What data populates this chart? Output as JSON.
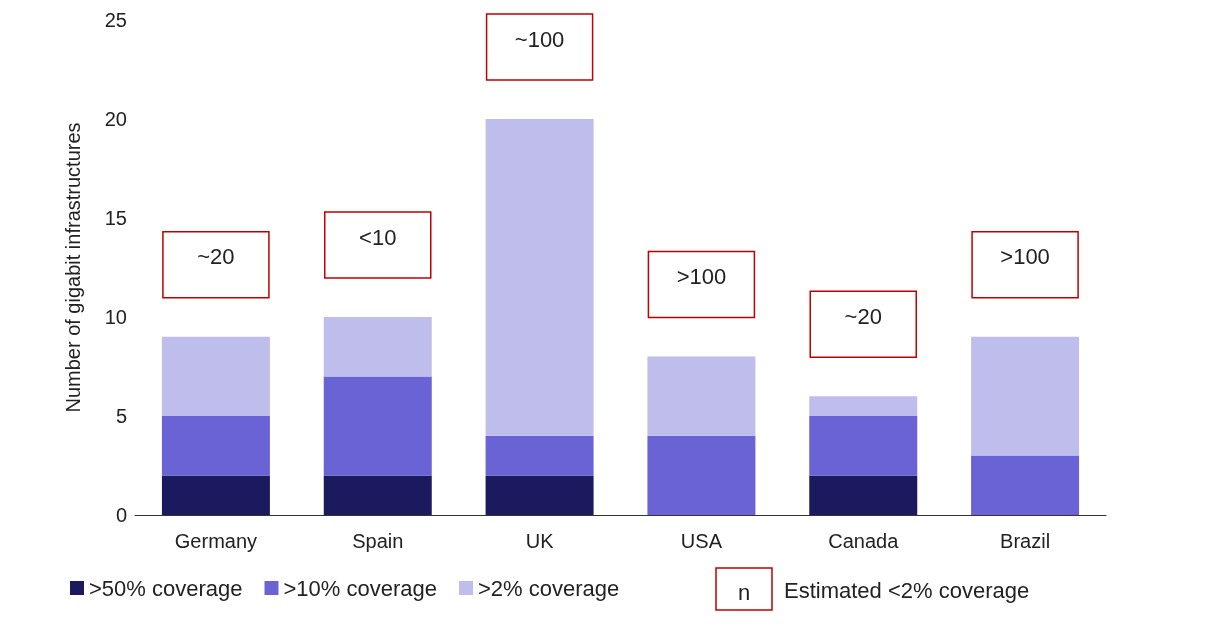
{
  "chart_data": {
    "type": "bar",
    "stacked": true,
    "ylabel": "Number of gigabit infrastructures",
    "categories": [
      "Germany",
      "Spain",
      "UK",
      "USA",
      "Canada",
      "Brazil"
    ],
    "series": [
      {
        "name": ">50% coverage",
        "color": "#1c1a5e",
        "values": [
          2,
          2,
          2,
          0,
          2,
          0
        ]
      },
      {
        "name": ">10% coverage",
        "color": "#6a63d6",
        "values": [
          3,
          5,
          2,
          4,
          3,
          3
        ]
      },
      {
        "name": ">2% coverage",
        "color": "#bfbdec",
        "values": [
          4,
          3,
          16,
          4,
          1,
          6
        ]
      }
    ],
    "ylim": [
      0,
      25
    ],
    "yticks": [
      0,
      5,
      10,
      15,
      20,
      25
    ],
    "grid": false,
    "legend": "bottom",
    "annotations": [
      "~20",
      "<10",
      "~100",
      ">100",
      "~20",
      ">100",
      "n",
      "Estimated <2% coverage"
    ]
  }
}
